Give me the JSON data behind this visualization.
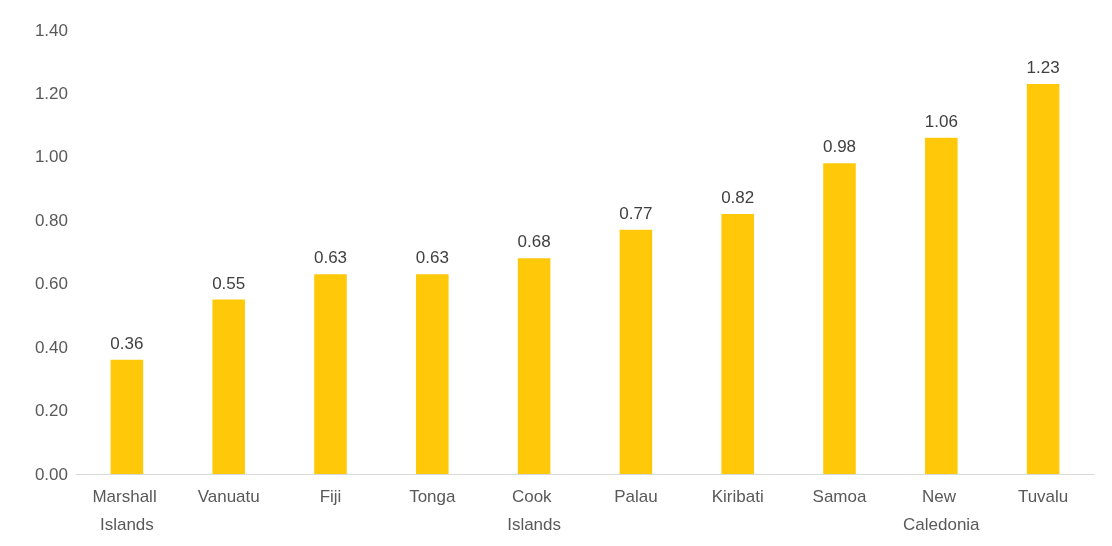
{
  "chart_data": {
    "type": "bar",
    "categories": [
      "Marshall Islands",
      "Vanuatu",
      "Fiji",
      "Tonga",
      "Cook Islands",
      "Palau",
      "Kiribati",
      "Samoa",
      "New Caledonia",
      "Tuvalu"
    ],
    "values": [
      0.36,
      0.55,
      0.63,
      0.63,
      0.68,
      0.77,
      0.82,
      0.98,
      1.06,
      1.23
    ],
    "color": "#ffc90a",
    "ylim": [
      0,
      1.4
    ],
    "yticks": [
      {
        "value": 0,
        "label": "0.00"
      },
      {
        "value": 0.2,
        "label": "0.20"
      },
      {
        "value": 0.4,
        "label": "0.40"
      },
      {
        "value": 0.6,
        "label": "0.60"
      },
      {
        "value": 0.8,
        "label": "0.80"
      },
      {
        "value": 1,
        "label": "1.00"
      },
      {
        "value": 1.2,
        "label": "1.20"
      },
      {
        "value": 1.4,
        "label": "1.40"
      }
    ],
    "data_labels": true,
    "grid": false
  }
}
